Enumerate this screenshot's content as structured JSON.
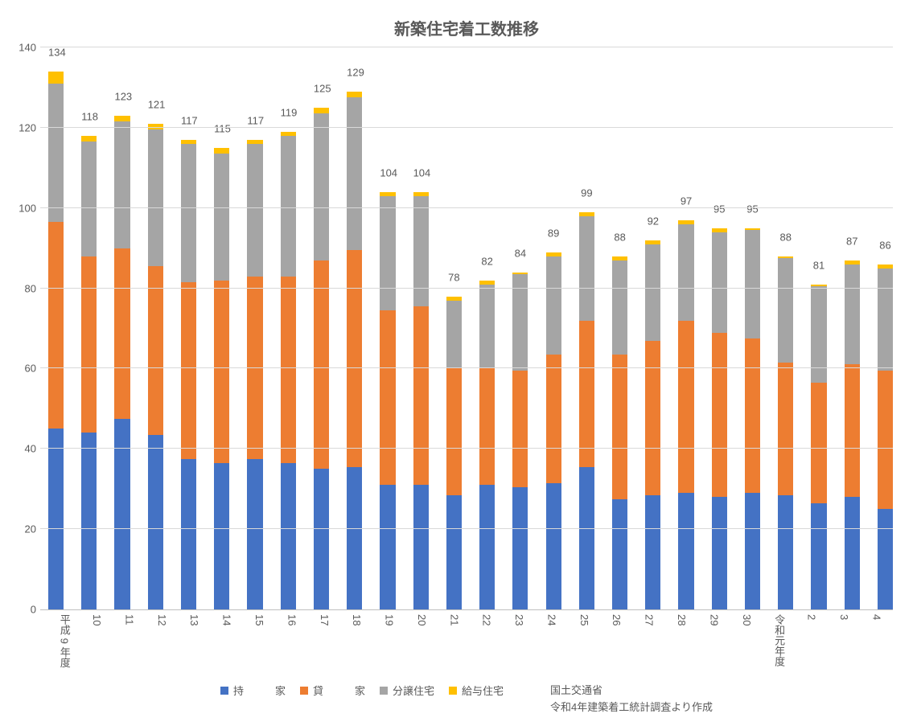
{
  "chart": {
    "type": "stacked-bar",
    "title": "新築住宅着工数推移",
    "title_fontsize": 20,
    "label_fontsize": 13,
    "background_color": "#ffffff",
    "grid_color": "#d9d9d9",
    "axis_color": "#bfbfbf",
    "text_color": "#595959",
    "ylim": [
      0,
      140
    ],
    "ytick_step": 20,
    "yticks": [
      0,
      20,
      40,
      60,
      80,
      100,
      120,
      140
    ],
    "categories": [
      "平成 9 年度",
      "10",
      "11",
      "12",
      "13",
      "14",
      "15",
      "16",
      "17",
      "18",
      "19",
      "20",
      "21",
      "22",
      "23",
      "24",
      "25",
      "26",
      "27",
      "28",
      "29",
      "30",
      "令和元年度",
      "2",
      "3",
      "4"
    ],
    "totals": [
      134,
      118,
      123,
      121,
      117,
      115,
      117,
      119,
      125,
      129,
      104,
      104,
      78,
      82,
      84,
      89,
      99,
      88,
      92,
      97,
      95,
      95,
      88,
      81,
      87,
      86
    ],
    "series": [
      {
        "name": "持　　　家",
        "color": "#4472c4",
        "values": [
          45,
          44,
          47.5,
          43.5,
          37.5,
          36.5,
          37.5,
          36.5,
          35,
          35.5,
          31,
          31,
          28.5,
          31,
          30.5,
          31.5,
          35.5,
          27.5,
          28.5,
          29,
          28,
          29,
          28.5,
          26.5,
          28,
          25
        ]
      },
      {
        "name": "貸　　　家",
        "color": "#ed7d31",
        "values": [
          51.5,
          44,
          42.5,
          42,
          44,
          45.5,
          45.5,
          46.5,
          52,
          54,
          43.5,
          44.5,
          31.5,
          29,
          29,
          32,
          36.5,
          36,
          38.5,
          43,
          41,
          38.5,
          33,
          30,
          33,
          34.5
        ]
      },
      {
        "name": "分譲住宅",
        "color": "#a5a5a5",
        "values": [
          34.5,
          28.5,
          31.5,
          34,
          34.5,
          31.5,
          33,
          35,
          36.5,
          38,
          28.5,
          27.5,
          17,
          21,
          24,
          24.5,
          26,
          23.5,
          24,
          24,
          25,
          27,
          26,
          24,
          25,
          25.5
        ]
      },
      {
        "name": "給与住宅",
        "color": "#ffc000",
        "values": [
          3,
          1.5,
          1.5,
          1.5,
          1,
          1.5,
          1,
          1,
          1.5,
          1.5,
          1,
          1,
          1,
          1,
          0.5,
          1,
          1,
          1,
          1,
          1,
          1,
          0.5,
          0.5,
          0.5,
          1,
          1
        ]
      }
    ],
    "source_lines": [
      "国土交通省",
      "令和4年建築着工統計調査より作成"
    ]
  }
}
